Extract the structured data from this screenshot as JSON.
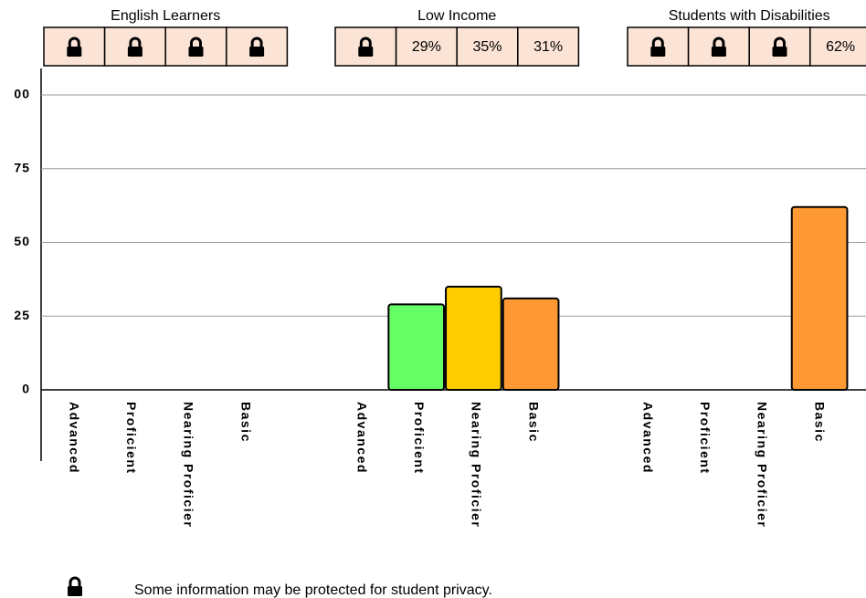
{
  "chart_data": {
    "type": "bar",
    "ylim": [
      0,
      100
    ],
    "yticks": [
      0,
      25,
      50,
      75,
      {
        "value": 100,
        "label": "00"
      }
    ],
    "grid": true,
    "groups": [
      {
        "name": "English Learners",
        "categories": [
          "Advanced",
          "Proficient",
          "Nearing Proficier",
          "Basic"
        ],
        "values": [
          null,
          null,
          null,
          null
        ],
        "value_labels": [
          null,
          null,
          null,
          null
        ],
        "colors": [
          null,
          "#66ff66",
          "#ffcc00",
          "#ff9933"
        ]
      },
      {
        "name": "Low Income",
        "categories": [
          "Advanced",
          "Proficient",
          "Nearing Proficier",
          "Basic"
        ],
        "values": [
          null,
          29,
          35,
          31
        ],
        "value_labels": [
          null,
          "29%",
          "35%",
          "31%"
        ],
        "colors": [
          null,
          "#66ff66",
          "#ffcc00",
          "#ff9933"
        ]
      },
      {
        "name": "Students with Disabilities",
        "categories": [
          "Advanced",
          "Proficient",
          "Nearing Proficier",
          "Basic"
        ],
        "values": [
          null,
          null,
          null,
          62
        ],
        "value_labels": [
          null,
          null,
          null,
          "62%"
        ],
        "colors": [
          null,
          "#66ff66",
          "#ffcc00",
          "#ff9933"
        ]
      }
    ],
    "footnote": "Some information may be protected for student privacy."
  }
}
